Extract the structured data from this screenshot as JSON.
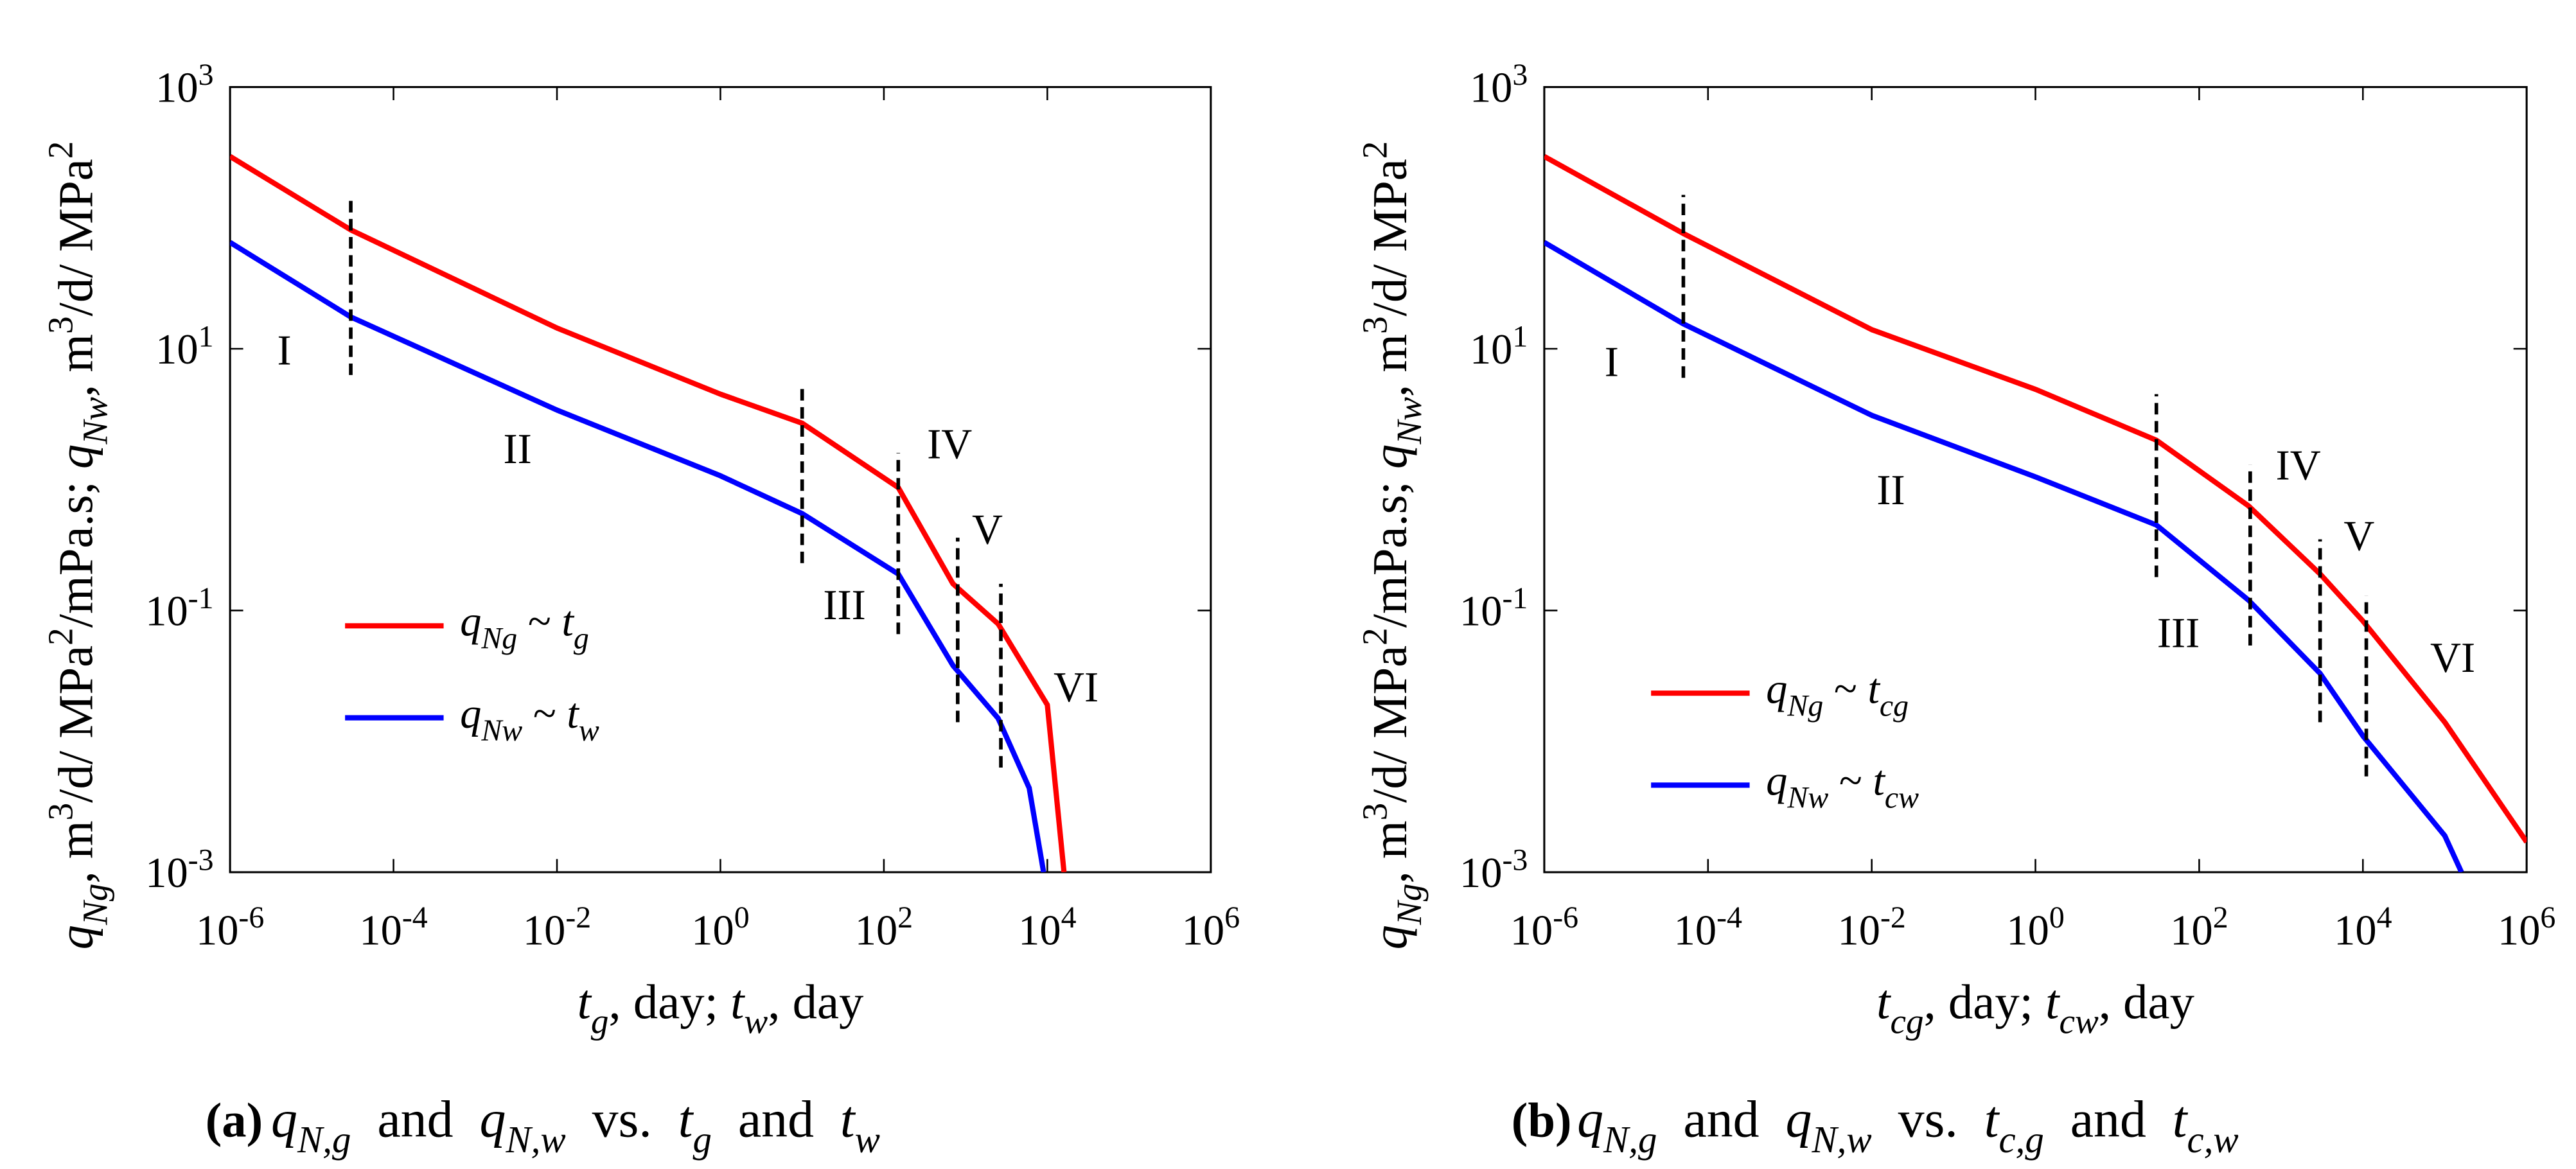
{
  "chart_data": [
    {
      "type": "line",
      "xscale": "log",
      "yscale": "log",
      "xlabel": "*t*_{*g*}, day; *t*_{*w*}, day",
      "ylabel": "*q*_{*Ng*}, m^{3}/d/ MPa^{2}/mPa.s; *q*_{*Nw*}, m^{3}/d/ MPa^{2}",
      "caption_tag": "(a)",
      "caption": "*q*_{*N,g*}  and  *q*_{*N,w*}  vs.  *t*_{*g*}  and  *t*_{*w*}",
      "xlim": [
        1e-06,
        1000000
      ],
      "ylim": [
        0.001,
        1000
      ],
      "xticks": [
        {
          "value": 1e-06,
          "label": "10^{-6}"
        },
        {
          "value": 0.0001,
          "label": "10^{-4}"
        },
        {
          "value": 0.01,
          "label": "10^{-2}"
        },
        {
          "value": 1,
          "label": "10^{0}"
        },
        {
          "value": 100,
          "label": "10^{2}"
        },
        {
          "value": 10000,
          "label": "10^{4}"
        },
        {
          "value": 1000000,
          "label": "10^{6}"
        }
      ],
      "yticks": [
        {
          "value": 0.001,
          "label": "10^{-3}"
        },
        {
          "value": 0.1,
          "label": "10^{-1}"
        },
        {
          "value": 10,
          "label": "10^{1}"
        },
        {
          "value": 1000,
          "label": "10^{3}"
        }
      ],
      "series": [
        {
          "name": "*q*_{*Ng*} ~ *t*_{*g*}",
          "color": "#ff0000",
          "x": [
            1e-06,
            3e-05,
            0.01,
            1,
            10,
            150,
            700,
            2500,
            10000,
            16000
          ],
          "values": [
            295,
            81,
            14.4,
            4.5,
            2.7,
            0.87,
            0.16,
            0.079,
            0.019,
            0.001
          ]
        },
        {
          "name": "*q*_{*Nw*} ~ *t*_{*w*}",
          "color": "#0000ff",
          "x": [
            1e-06,
            3e-05,
            0.01,
            1,
            10,
            150,
            700,
            2500,
            6000,
            9000
          ],
          "values": [
            65,
            17.5,
            3.4,
            1.07,
            0.55,
            0.19,
            0.038,
            0.015,
            0.0044,
            0.001
          ]
        }
      ],
      "vlines": [
        {
          "x": 3e-05,
          "y": [
            6.3,
            150
          ]
        },
        {
          "x": 10,
          "y": [
            0.23,
            5.5
          ]
        },
        {
          "x": 150,
          "y": [
            0.066,
            1.6
          ]
        },
        {
          "x": 800,
          "y": [
            0.014,
            0.36
          ]
        },
        {
          "x": 2700,
          "y": [
            0.0063,
            0.16
          ]
        }
      ],
      "annotations": [
        "I",
        "II",
        "III",
        "IV",
        "V",
        "VI"
      ]
    },
    {
      "type": "line",
      "xscale": "log",
      "yscale": "log",
      "xlabel": "*t*_{*cg*}, day; *t*_{*cw*}, day",
      "ylabel": "*q*_{*Ng*}, m^{3}/d/ MPa^{2}/mPa.s; *q*_{*Nw*}, m^{3}/d/ MPa^{2}",
      "caption_tag": "(b)",
      "caption": "*q*_{*N,g*}  and  *q*_{*N,w*}  vs.  *t*_{*c,g*}  and  *t*_{*c,w*}",
      "xlim": [
        1e-06,
        1000000
      ],
      "ylim": [
        0.001,
        1000
      ],
      "xticks": [
        {
          "value": 1e-06,
          "label": "10^{-6}"
        },
        {
          "value": 0.0001,
          "label": "10^{-4}"
        },
        {
          "value": 0.01,
          "label": "10^{-2}"
        },
        {
          "value": 1,
          "label": "10^{0}"
        },
        {
          "value": 100,
          "label": "10^{2}"
        },
        {
          "value": 10000,
          "label": "10^{4}"
        },
        {
          "value": 1000000,
          "label": "10^{6}"
        }
      ],
      "yticks": [
        {
          "value": 0.001,
          "label": "10^{-3}"
        },
        {
          "value": 0.1,
          "label": "10^{-1}"
        },
        {
          "value": 10,
          "label": "10^{1}"
        },
        {
          "value": 1000,
          "label": "10^{3}"
        }
      ],
      "series": [
        {
          "name": "*q*_{*Ng*} ~ *t*_{*cg*}",
          "color": "#ff0000",
          "x": [
            1e-06,
            5e-05,
            0.01,
            1,
            30,
            400,
            3000,
            10000,
            100000,
            1000000
          ],
          "values": [
            295,
            76,
            14,
            4.9,
            2.0,
            0.63,
            0.19,
            0.083,
            0.014,
            0.0017
          ]
        },
        {
          "name": "*q*_{*Nw*} ~ *t*_{*cw*}",
          "color": "#0000ff",
          "x": [
            1e-06,
            5e-05,
            0.01,
            1,
            30,
            400,
            3000,
            10000,
            100000,
            160000
          ],
          "values": [
            65,
            15.5,
            3.1,
            1.05,
            0.45,
            0.12,
            0.033,
            0.011,
            0.0019,
            0.001
          ]
        }
      ],
      "vlines": [
        {
          "x": 5e-05,
          "y": [
            6,
            150
          ]
        },
        {
          "x": 30,
          "y": [
            0.18,
            4.5
          ]
        },
        {
          "x": 420,
          "y": [
            0.054,
            1.3
          ]
        },
        {
          "x": 3000,
          "y": [
            0.014,
            0.35
          ]
        },
        {
          "x": 11000,
          "y": [
            0.0054,
            0.13
          ]
        }
      ],
      "annotations": [
        "I",
        "II",
        "III",
        "IV",
        "V",
        "VI"
      ]
    }
  ]
}
